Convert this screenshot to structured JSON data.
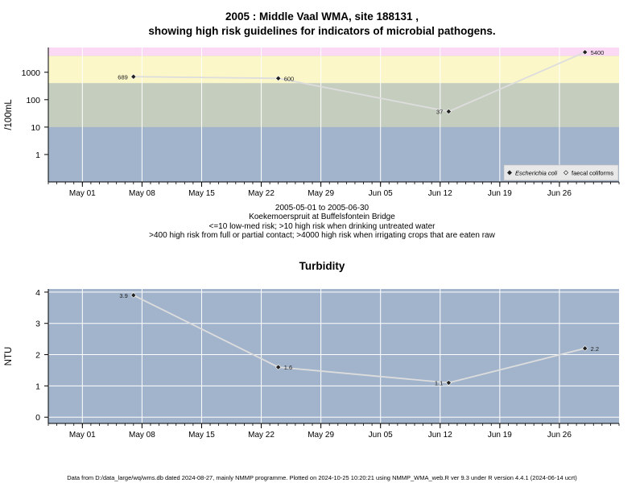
{
  "page": {
    "title_line1": "2005 : Middle Vaal WMA, site 188131 ,",
    "title_line2": "showing high risk guidelines for indicators of microbial pathogens.",
    "date_range": "2005-05-01 to 2005-06-30",
    "site_name": "Koekemoerspruit at Buffelsfontein Bridge",
    "guideline_1": "<=10 low-med risk; >10 high risk when drinking untreated water",
    "guideline_2": ">400 high risk from full or partial contact; >4000 high risk when irrigating crops that are eaten raw",
    "footer": "Data from D:/data_large/wq/wms.db dated 2024-08-27, mainly NMMP programme. Plotted on 2024-10-25 10:20:21 using NMMP_WMA_web.R ver 9.3 under R version 4.4.1 (2024-06-14 ucrt)"
  },
  "colors": {
    "band_low": "#a2b4cc",
    "band_mid": "#c5cdbf",
    "band_high": "#fbf7c8",
    "band_top": "#fbd8f4",
    "plot_bg": "#a2b4cc",
    "line": "#dddddd",
    "grid": "#ffffff",
    "point": "#222222",
    "legend_bg": "#e8e8e8"
  },
  "chart_data": [
    {
      "type": "line",
      "title": "",
      "ylabel": "/100mL",
      "yscale": "log",
      "ylim": [
        0.1,
        8000
      ],
      "y_ticks": [
        1,
        10,
        100,
        1000
      ],
      "y_tick_labels": [
        "1",
        "10",
        "100",
        "1000"
      ],
      "risk_bands": [
        {
          "from": 0.1,
          "to": 10,
          "color": "band_low"
        },
        {
          "from": 10,
          "to": 400,
          "color": "band_mid"
        },
        {
          "from": 400,
          "to": 4000,
          "color": "band_high"
        },
        {
          "from": 4000,
          "to": 8000,
          "color": "band_top"
        }
      ],
      "x_range": [
        "2005-04-27",
        "2005-07-03"
      ],
      "x_ticks": [
        "2005-05-01",
        "2005-05-08",
        "2005-05-15",
        "2005-05-22",
        "2005-05-29",
        "2005-06-05",
        "2005-06-12",
        "2005-06-19",
        "2005-06-26"
      ],
      "x_tick_labels": [
        "May 01",
        "May 08",
        "May 15",
        "May 22",
        "May 29",
        "Jun 05",
        "Jun 12",
        "Jun 19",
        "Jun 26"
      ],
      "legend": {
        "placement": "bottom-right",
        "entries": [
          {
            "label": "Escherichia coli",
            "marker": "filled-diamond",
            "italic": true
          },
          {
            "label": "faecal coliforms",
            "marker": "open-diamond",
            "italic": false
          }
        ]
      },
      "series": [
        {
          "marker": "filled-diamond",
          "points": [
            {
              "x": "2005-05-07",
              "y": 689,
              "label": "689"
            },
            {
              "x": "2005-05-24",
              "y": 600,
              "label": "600"
            },
            {
              "x": "2005-06-13",
              "y": 37,
              "label": "37"
            },
            {
              "x": "2005-06-29",
              "y": 5400,
              "label": "5400"
            }
          ]
        }
      ]
    },
    {
      "type": "line",
      "title": "Turbidity",
      "ylabel": "NTU",
      "yscale": "linear",
      "ylim": [
        -0.2,
        4.1
      ],
      "y_ticks": [
        0,
        1,
        2,
        3,
        4
      ],
      "y_tick_labels": [
        "0",
        "1",
        "2",
        "3",
        "4"
      ],
      "x_range": [
        "2005-04-27",
        "2005-07-03"
      ],
      "x_ticks": [
        "2005-05-01",
        "2005-05-08",
        "2005-05-15",
        "2005-05-22",
        "2005-05-29",
        "2005-06-05",
        "2005-06-12",
        "2005-06-19",
        "2005-06-26"
      ],
      "x_tick_labels": [
        "May 01",
        "May 08",
        "May 15",
        "May 22",
        "May 29",
        "Jun 05",
        "Jun 12",
        "Jun 19",
        "Jun 26"
      ],
      "series": [
        {
          "marker": "filled-diamond",
          "points": [
            {
              "x": "2005-05-07",
              "y": 3.9,
              "label": "3.9"
            },
            {
              "x": "2005-05-24",
              "y": 1.6,
              "label": "1.6"
            },
            {
              "x": "2005-06-13",
              "y": 1.1,
              "label": "1.1"
            },
            {
              "x": "2005-06-29",
              "y": 2.2,
              "label": "2.2"
            }
          ]
        }
      ]
    }
  ]
}
